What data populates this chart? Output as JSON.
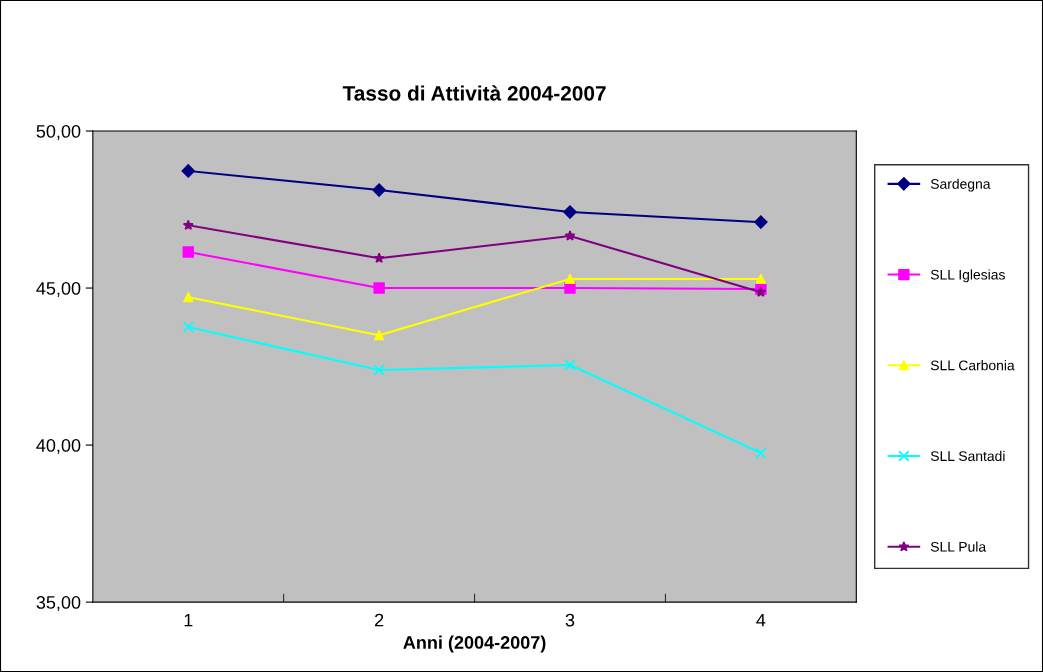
{
  "chart_data": {
    "type": "line",
    "title": "Tasso di Attività 2004-2007",
    "xlabel": "Anni (2004-2007)",
    "categories": [
      "1",
      "2",
      "3",
      "4"
    ],
    "series": [
      {
        "name": "Sardegna",
        "color": "#000080",
        "marker": "diamond",
        "values": [
          48.73,
          48.12,
          47.42,
          47.1
        ]
      },
      {
        "name": "SLL Iglesias",
        "color": "#ff00ff",
        "marker": "square",
        "values": [
          46.15,
          45.0,
          45.0,
          44.97
        ]
      },
      {
        "name": "SLL Carbonia",
        "color": "#ffff00",
        "marker": "triangle",
        "values": [
          44.71,
          43.5,
          45.29,
          45.29
        ]
      },
      {
        "name": "SLL Santadi",
        "color": "#00ffff",
        "marker": "cross",
        "values": [
          43.76,
          42.39,
          42.55,
          39.75
        ]
      },
      {
        "name": "SLL Pula",
        "color": "#800080",
        "marker": "star",
        "values": [
          47.0,
          45.95,
          46.66,
          44.87
        ]
      }
    ],
    "ylim": [
      35,
      50
    ],
    "yticks": [
      {
        "value": 35,
        "label": "35,00"
      },
      {
        "value": 40,
        "label": "40,00"
      },
      {
        "value": 45,
        "label": "45,00"
      },
      {
        "value": 50,
        "label": "50,00"
      }
    ],
    "grid": false,
    "legend": "right",
    "line_style": "solid"
  }
}
